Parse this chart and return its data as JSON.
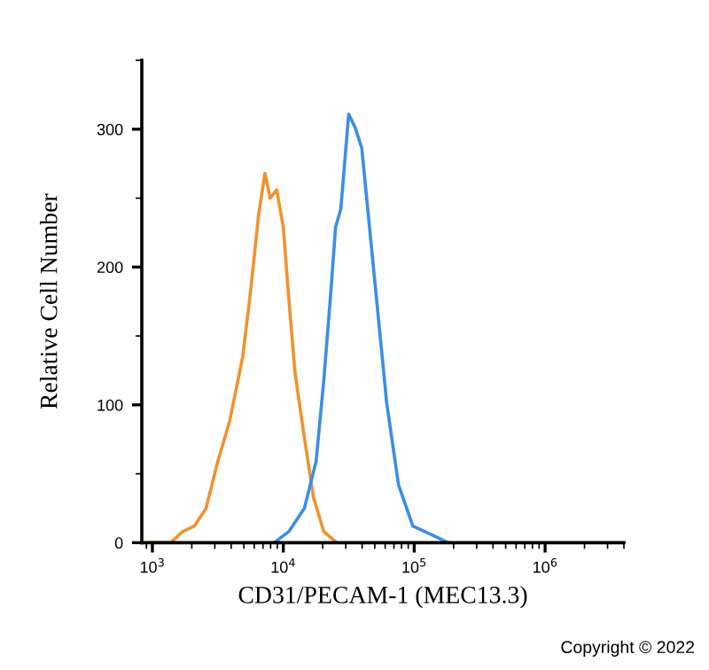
{
  "chart_data": {
    "type": "line",
    "xlabel": "CD31/PECAM-1 (MEC13.3)",
    "ylabel": "Relative Cell Number",
    "log": "x",
    "grid": false,
    "legend": false,
    "marker": "none",
    "line_style": "solid",
    "xlim": [
      830,
      4000000
    ],
    "ylim": [
      0,
      350
    ],
    "xticks": [
      {
        "value": 1000,
        "label": "10$^{3}$"
      },
      {
        "value": 10000,
        "label": "10$^{4}$"
      },
      {
        "value": 100000,
        "label": "10$^{5}$"
      },
      {
        "value": 1000000,
        "label": "10$^{6}$"
      }
    ],
    "yticks": [
      0,
      100,
      200,
      300
    ],
    "annotations": [
      "Copyright © 2022"
    ],
    "series": [
      {
        "color": "#f0922e",
        "x": [
          912,
          1380,
          1700,
          2090,
          2570,
          3160,
          3890,
          4900,
          5620,
          6460,
          7240,
          7940,
          8910,
          10000,
          11000,
          12300,
          14500,
          17000,
          20400,
          25700
        ],
        "values": [
          0,
          0,
          8,
          12,
          25,
          59,
          88,
          135,
          182,
          237,
          268,
          250,
          256,
          229,
          178,
          123,
          76,
          33,
          8,
          0
        ]
      },
      {
        "color": "#3a8ee6",
        "x": [
          8510,
          11000,
          14500,
          17800,
          20400,
          22900,
          25100,
          27500,
          31600,
          35500,
          39800,
          44700,
          52500,
          61700,
          75900,
          97700,
          135000,
          182000
        ],
        "values": [
          0,
          8,
          25,
          59,
          118,
          178,
          229,
          242,
          311,
          301,
          286,
          237,
          169,
          101,
          42,
          12,
          6,
          0
        ]
      }
    ]
  }
}
